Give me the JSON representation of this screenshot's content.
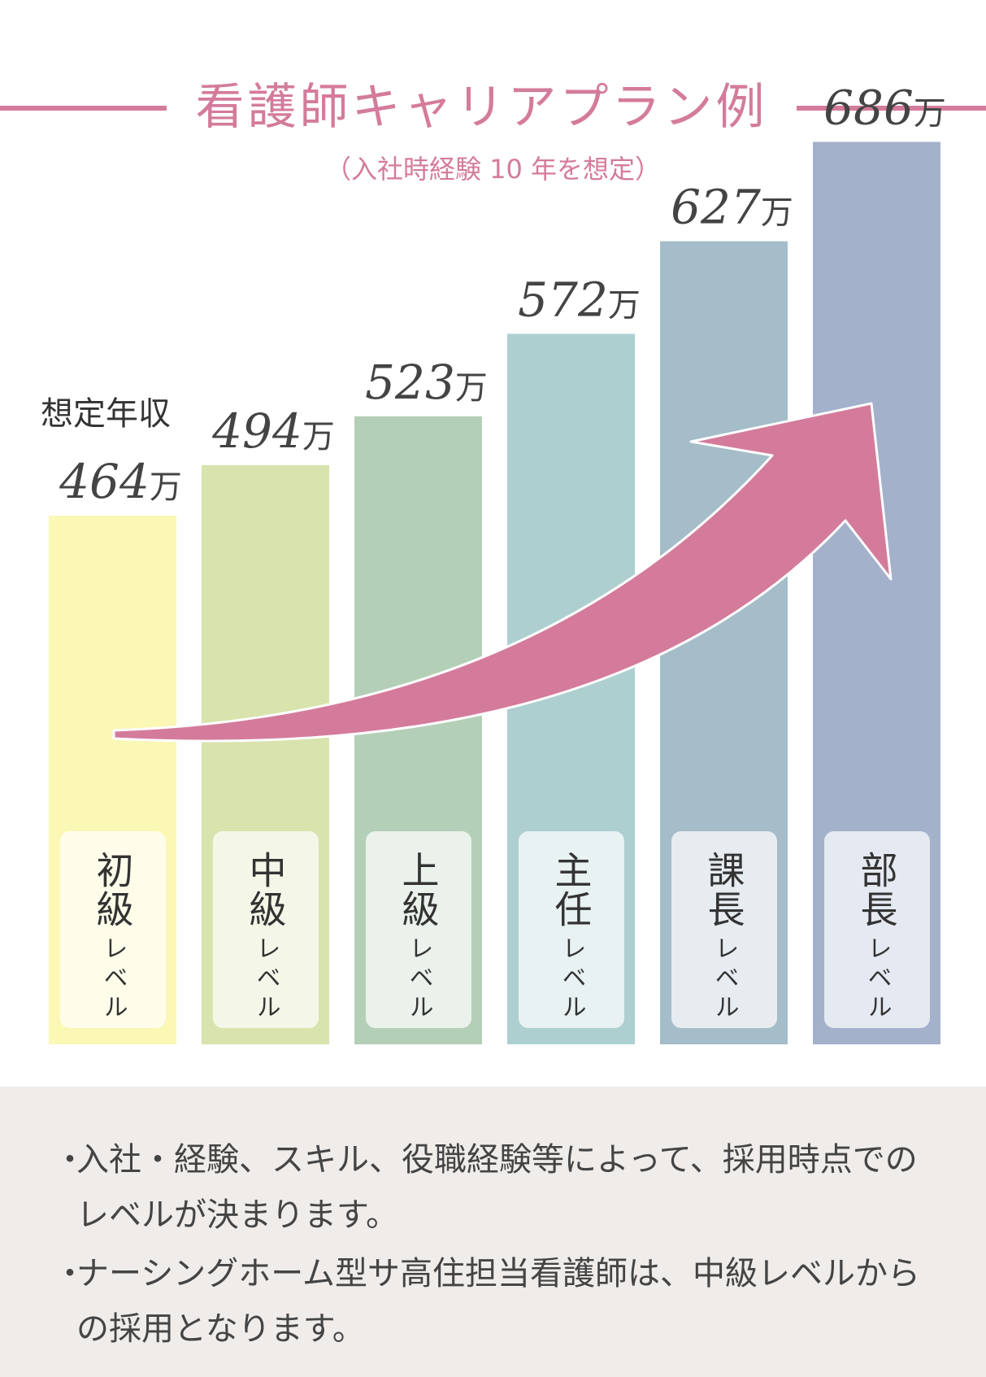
{
  "title": "看護師キャリアプラン例",
  "subtitle": "（入社時経験 10 年を想定）",
  "chart_data": {
    "type": "bar",
    "title": "看護師キャリアプラン例",
    "subtitle": "（入社時経験 10 年を想定）",
    "ylabel": "想定年収",
    "unit": "万",
    "categories": [
      "初級レベル",
      "中級レベル",
      "上級レベル",
      "主任レベル",
      "課長レベル",
      "部長レベル"
    ],
    "values": [
      464,
      494,
      523,
      572,
      627,
      686
    ],
    "ylim": [
      0,
      686
    ],
    "grid": false,
    "legend": "none"
  },
  "levels": [
    {
      "main": "初級",
      "sub": "レベル",
      "color": "#fbf7b5"
    },
    {
      "main": "中級",
      "sub": "レベル",
      "color": "#d8e3ad"
    },
    {
      "main": "上級",
      "sub": "レベル",
      "color": "#b4cfb7"
    },
    {
      "main": "主任",
      "sub": "レベル",
      "color": "#aecfcf"
    },
    {
      "main": "課長",
      "sub": "レベル",
      "color": "#a5bcc9"
    },
    {
      "main": "部長",
      "sub": "レベル",
      "color": "#a3b1cb"
    }
  ],
  "arrow_color": "#d47b9b",
  "notes": [
    {
      "bullet": "・",
      "text": "入社・経験、スキル、役職経験等によって、採用時点でのレベルが決まります。"
    },
    {
      "bullet": "・",
      "text": "ナーシングホーム型サ高住担当看護師は、中級レベルからの採用となります。"
    }
  ]
}
